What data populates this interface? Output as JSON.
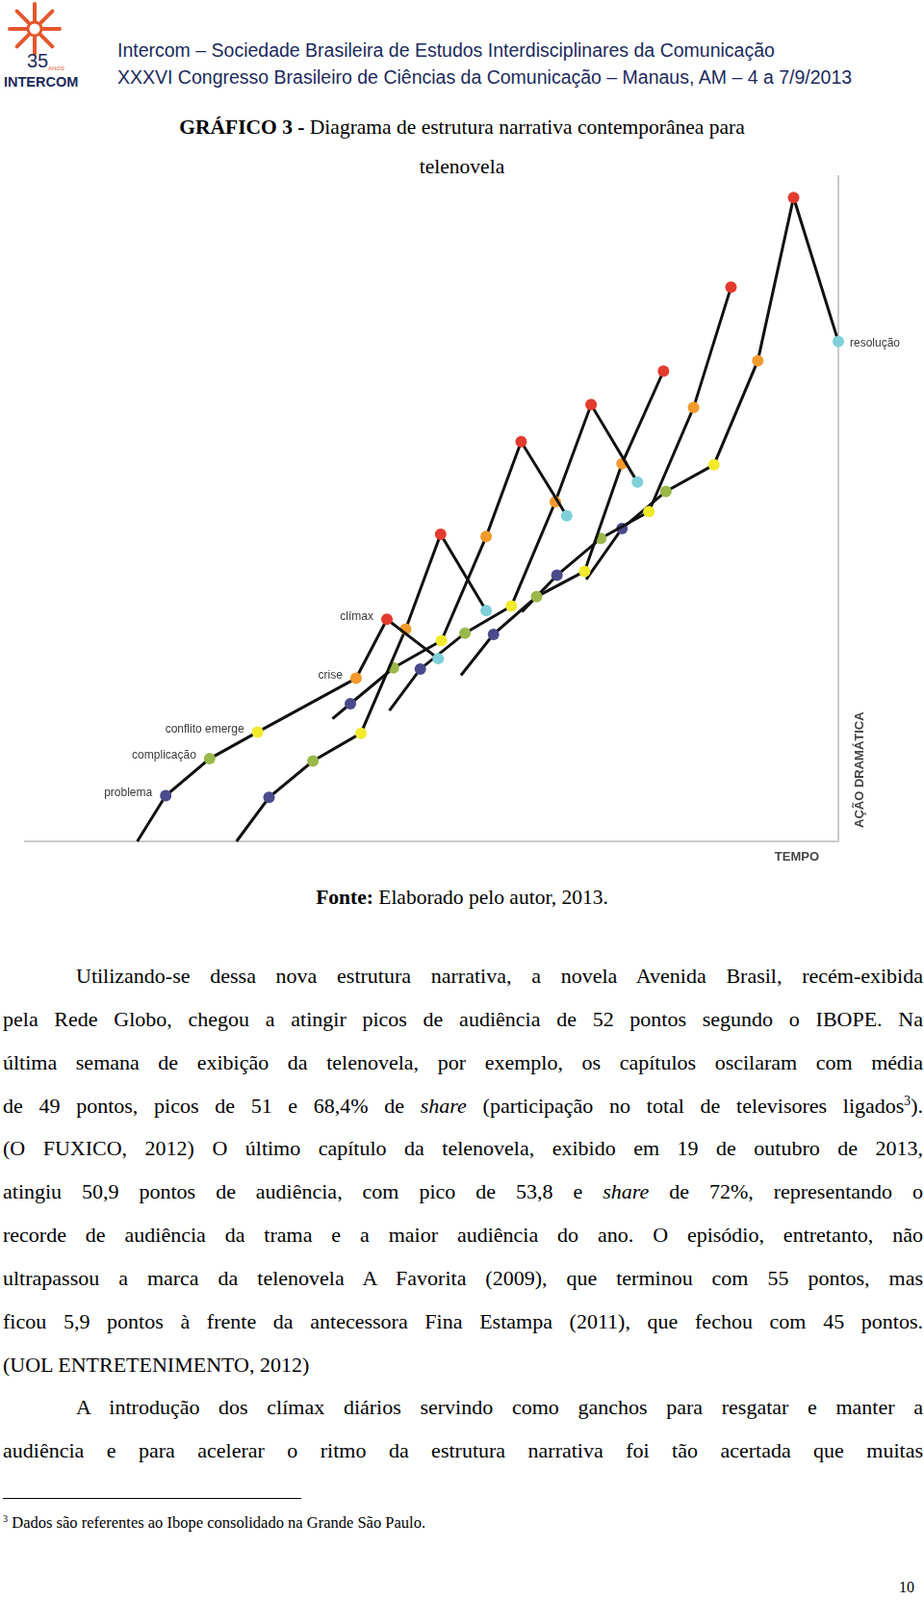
{
  "header": {
    "logo": {
      "number": "35",
      "sub": "ANOS",
      "name": "INTERCOM"
    },
    "lines": [
      "Intercom – Sociedade Brasileira de Estudos Interdisciplinares da Comunicação",
      "XXXVI Congresso Brasileiro de Ciências da Comunicação – Manaus, AM – 4 a 7/9/2013"
    ]
  },
  "caption": {
    "label": "GRÁFICO 3 -",
    "lines": [
      "Diagrama de estrutura narrativa contemporânea para",
      "telenovela"
    ]
  },
  "chart_data": {
    "type": "line",
    "x_label": "TEMPO",
    "y_label": "AÇÃO DRAMÁTICA",
    "xlim": [
      0,
      100
    ],
    "ylim": [
      0,
      115
    ],
    "tick_labels": false,
    "grid": false,
    "series": [
      {
        "x": [
          13.8,
          17.3,
          22.7,
          28.6,
          40.7,
          44.5,
          50.8
        ],
        "values": [
          0,
          7.9,
          14.3,
          18.9,
          28.2,
          38.4,
          31.6
        ],
        "colors": [
          "transparent",
          "#4a4a8c",
          "#9ab84a",
          "#f2ea2b",
          "#f29a2e",
          "#e33b2e",
          "#7fcfd9"
        ]
      },
      {
        "x": [
          26.0,
          30.0,
          35.4,
          41.3,
          46.8,
          51.1,
          56.7
        ],
        "values": [
          0,
          7.6,
          13.9,
          18.7,
          36.7,
          53.1,
          39.9
        ],
        "colors": [
          "transparent",
          "#4a4a8c",
          "#9ab84a",
          "#f2ea2b",
          "#f29a2e",
          "#e33b2e",
          "#7fcfd9"
        ]
      },
      {
        "x": [
          37.8,
          40.0,
          45.3,
          51.2,
          56.7,
          61.0,
          66.6
        ],
        "values": [
          21.2,
          23.8,
          30.0,
          34.7,
          52.7,
          69.1,
          56.3
        ],
        "colors": [
          "transparent",
          "#4a4a8c",
          "#9ab84a",
          "#f2ea2b",
          "#f29a2e",
          "#e33b2e",
          "#7fcfd9"
        ]
      },
      {
        "x": [
          44.8,
          48.6,
          54.1,
          59.8,
          65.2,
          69.6,
          75.3
        ],
        "values": [
          22.6,
          29.8,
          36.0,
          40.7,
          58.7,
          75.5,
          62.1
        ],
        "colors": [
          "transparent",
          "#4a4a8c",
          "#9ab84a",
          "#f2ea2b",
          "#f29a2e",
          "#e33b2e",
          "#7fcfd9"
        ]
      },
      {
        "x": [
          53.6,
          57.6,
          62.9,
          68.8,
          73.4,
          78.5
        ],
        "values": [
          28.7,
          35.8,
          42.3,
          46.7,
          65.3,
          81.3
        ],
        "colors": [
          "transparent",
          "#4a4a8c",
          "#9ab84a",
          "#f2ea2b",
          "#f29a2e",
          "#e33b2e"
        ]
      },
      {
        "x": [
          61.1,
          65.4,
          70.8,
          76.7,
          82.2,
          86.8
        ],
        "values": [
          39.7,
          46.0,
          52.4,
          57.0,
          75.0,
          95.8
        ],
        "colors": [
          "transparent",
          "#4a4a8c",
          "#9ab84a",
          "#f2ea2b",
          "#f29a2e",
          "#e33b2e"
        ]
      },
      {
        "x": [
          69.0,
          73.4,
          78.8,
          84.7,
          90.1,
          94.5,
          100.0
        ],
        "values": [
          45.3,
          54.1,
          60.5,
          65.1,
          83.1,
          111.3,
          86.4
        ],
        "colors": [
          "transparent",
          "#4a4a8c",
          "#9ab84a",
          "#f2ea2b",
          "#f29a2e",
          "#e33b2e",
          "#7fcfd9"
        ]
      }
    ],
    "annotations": [
      {
        "text": "problema",
        "x": 17.3,
        "y": 7.9
      },
      {
        "text": "complicação",
        "x": 22.7,
        "y": 14.3
      },
      {
        "text": "conflito emerge",
        "x": 28.6,
        "y": 18.9
      },
      {
        "text": "crise",
        "x": 40.7,
        "y": 28.2
      },
      {
        "text": "clímax",
        "x": 44.5,
        "y": 38.4
      },
      {
        "text": "resolução",
        "x": 100.0,
        "y": 86.4
      }
    ]
  },
  "source": {
    "label": "Fonte:",
    "text": "Elaborado pelo autor, 2013."
  },
  "paragraphs": [
    [
      [
        "Utilizando-se dessa nova estrutura narrativa, a novela Avenida Brasil, recém-exibida"
      ],
      [
        "pela Rede Globo, chegou a atingir picos de audiência de 52 pontos segundo o IBOPE. Na"
      ],
      [
        "última semana de exibição da telenovela, por exemplo, os capítulos oscilaram com média"
      ],
      [
        "de 49 pontos, picos de 51 e 68,4% de ",
        {
          "text": "share",
          "style": "italic"
        },
        " (participação no total de televisores ligados",
        {
          "text": "3",
          "style": "sup"
        },
        ")."
      ],
      [
        "(O FUXICO, 2012) O último capítulo da telenovela, exibido em 19 de outubro de 2013,"
      ],
      [
        "atingiu 50,9 pontos de audiência, com pico de 53,8 e ",
        {
          "text": "share",
          "style": "italic"
        },
        " de 72%, representando o"
      ],
      [
        "recorde de audiência da trama e a maior audiência do ano. O episódio, entretanto, não"
      ],
      [
        "ultrapassou a marca da telenovela A Favorita (2009), que terminou com 55 pontos, mas"
      ],
      [
        "ficou 5,9 pontos à frente da antecessora Fina Estampa (2011), que fechou com 45 pontos."
      ],
      [
        "(UOL ENTRETENIMENTO, 2012)"
      ]
    ],
    [
      [
        "A introdução dos clímax diários servindo como ganchos para resgatar e manter a"
      ],
      [
        "audiência e para acelerar o ritmo da estrutura narrativa foi tão acertada que muitas"
      ]
    ]
  ],
  "footnote": {
    "mark": "3",
    "text": "Dados são referentes ao Ibope consolidado na Grande São Paulo."
  },
  "page_number": "10"
}
